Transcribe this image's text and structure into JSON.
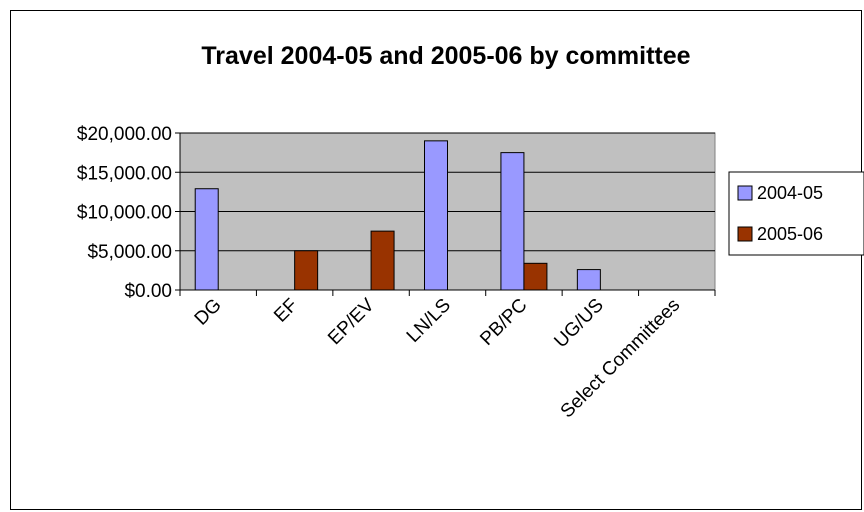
{
  "chart_data": {
    "type": "bar",
    "title": "Travel 2004-05 and 2005-06 by committee",
    "xlabel": "",
    "ylabel": "",
    "categories": [
      "DG",
      "EF",
      "EP/EV",
      "LN/LS",
      "PB/PC",
      "UG/US",
      "Select Committees"
    ],
    "series": [
      {
        "name": "2004-05",
        "color": "#9999ff",
        "values": [
          12900,
          0,
          0,
          19000,
          17500,
          2600,
          0
        ]
      },
      {
        "name": "2005-06",
        "color": "#993300",
        "values": [
          0,
          5000,
          7500,
          0,
          3400,
          0,
          0
        ]
      }
    ],
    "ylim": [
      0,
      20000
    ],
    "yticks": [
      0,
      5000,
      10000,
      15000,
      20000
    ],
    "ytick_labels": [
      "$0.00",
      "$5,000.00",
      "$10,000.00",
      "$15,000.00",
      "$20,000.00"
    ],
    "grid": true,
    "plot_background": "#c0c0c0",
    "legend_position": "right"
  }
}
